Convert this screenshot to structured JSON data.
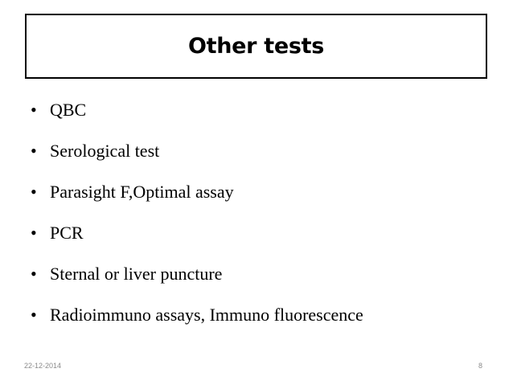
{
  "slide": {
    "title": "Other tests",
    "bullet_symbol": "•",
    "bullets": [
      "QBC",
      "Serological test",
      "Parasight F,Optimal assay",
      "PCR",
      "Sternal or liver puncture",
      "Radioimmuno assays, Immuno fluorescence"
    ],
    "footer": {
      "date": "22-12-2014",
      "page_number": "8"
    }
  }
}
